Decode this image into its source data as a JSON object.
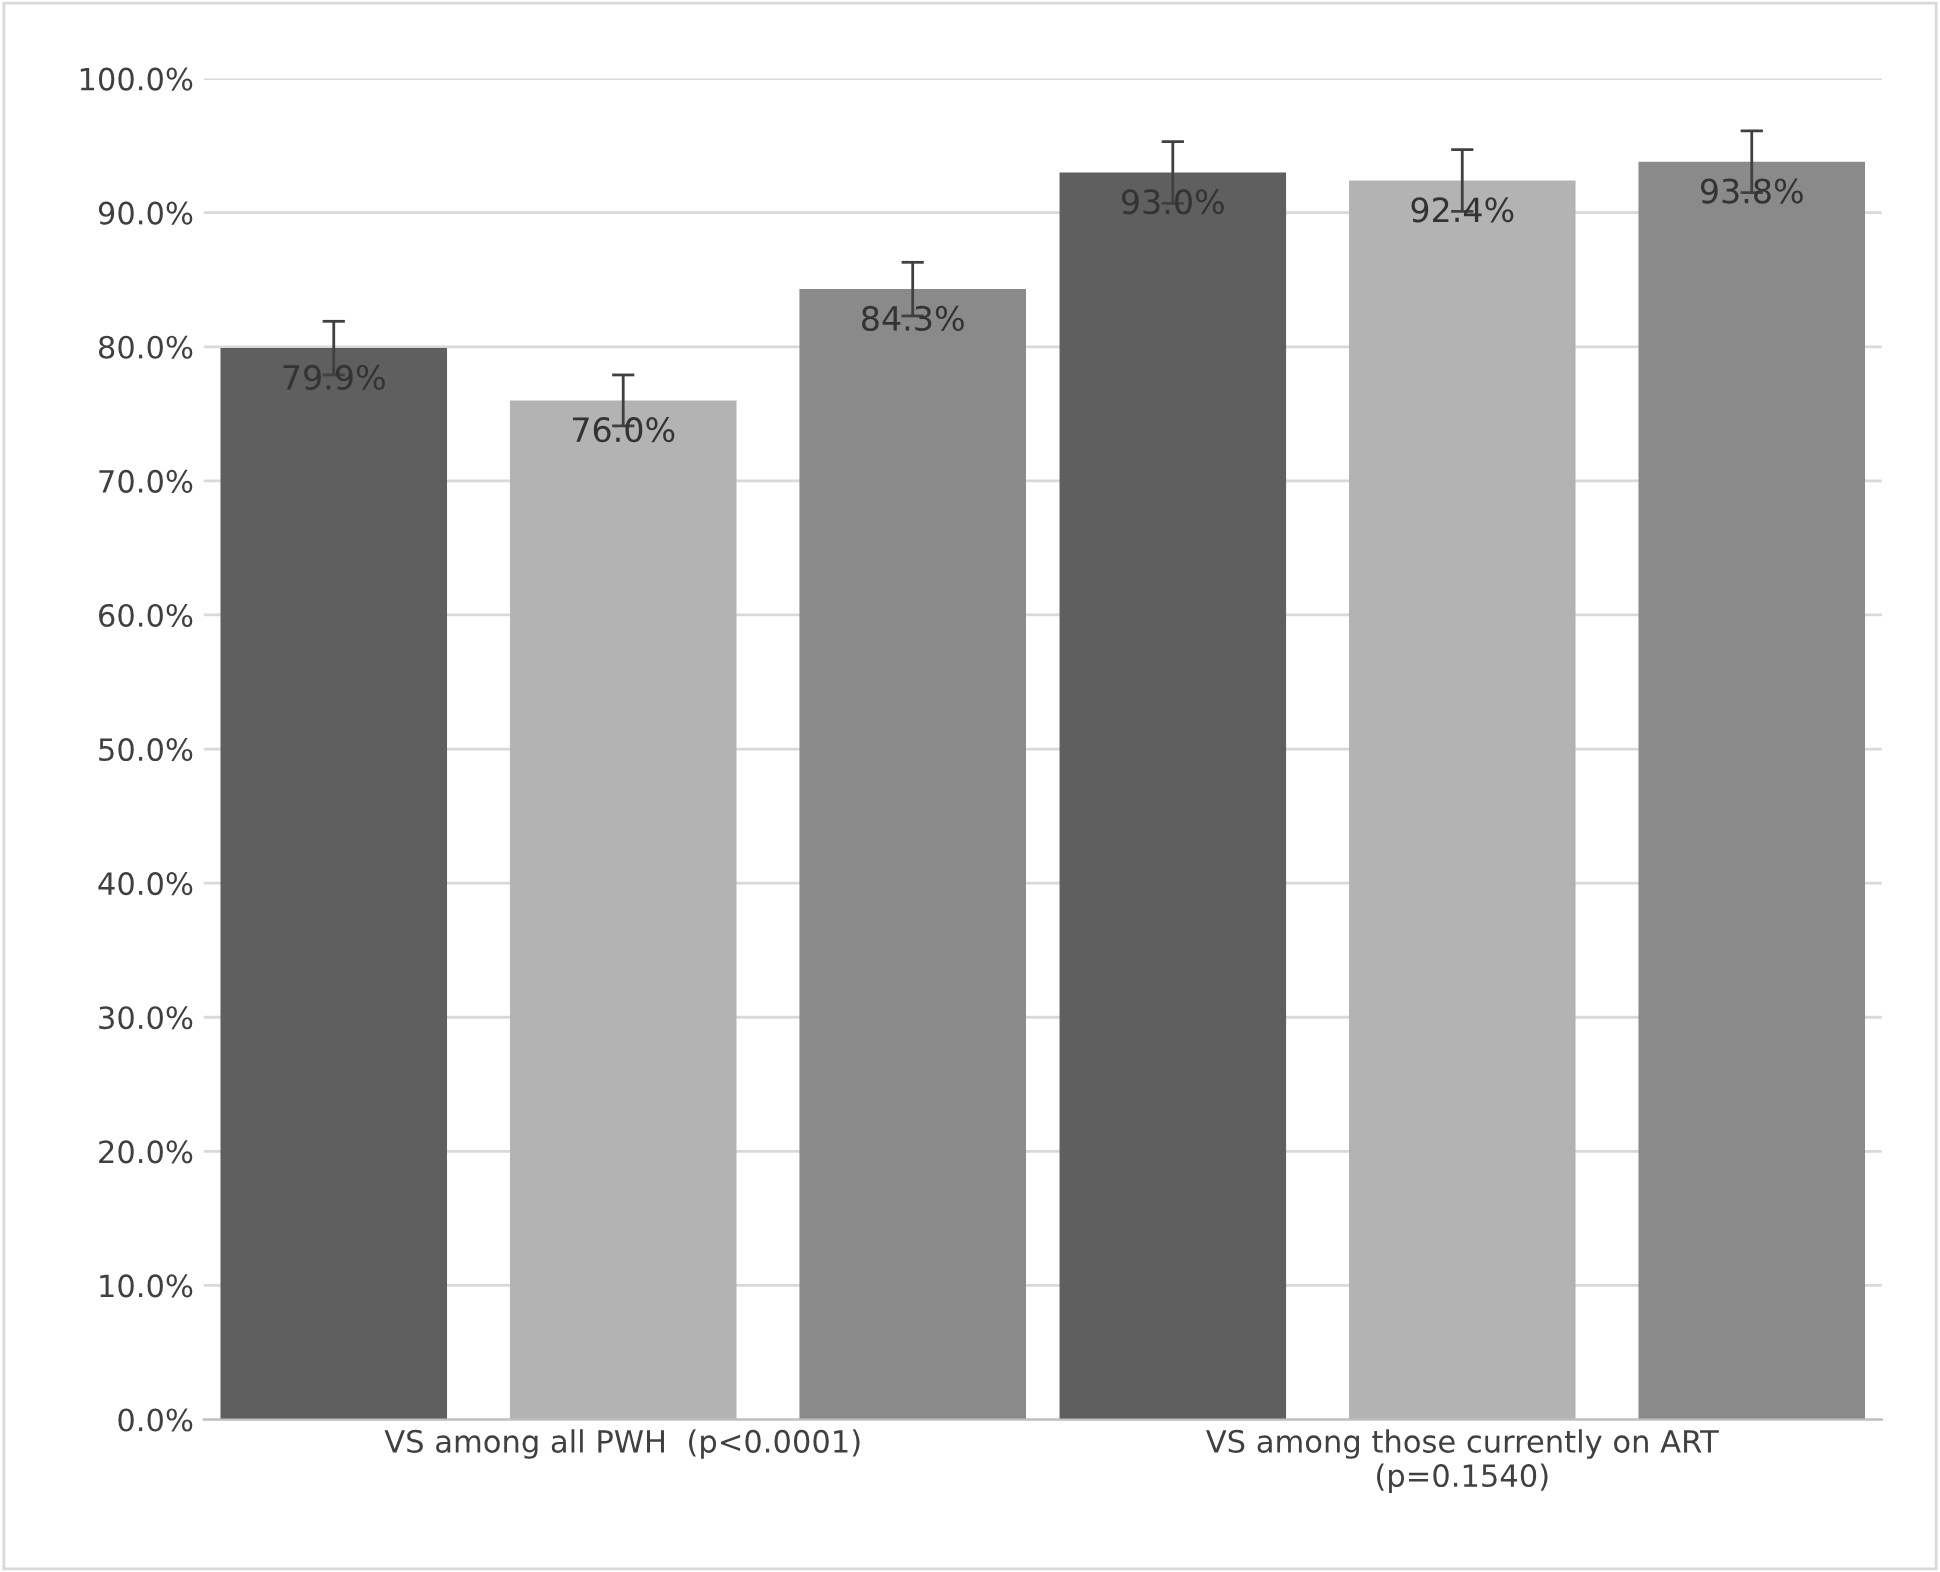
{
  "chart_data": {
    "type": "bar",
    "categories": [
      "VS among all PWH  (p<0.0001)",
      "VS among those currently on ART\n(p=0.1540)"
    ],
    "series": [
      {
        "color": "#5f5f5f",
        "values": [
          79.9,
          93.0
        ],
        "errors": [
          2.0,
          2.3
        ],
        "value_labels": [
          "79.9%",
          "93.0%"
        ]
      },
      {
        "color": "#b3b3b3",
        "values": [
          76.0,
          92.4
        ],
        "errors": [
          1.9,
          2.3
        ],
        "value_labels": [
          "76.0%",
          "92.4%"
        ]
      },
      {
        "color": "#8a8a8a",
        "values": [
          84.3,
          93.8
        ],
        "errors": [
          2.0,
          2.3
        ],
        "value_labels": [
          "84.3%",
          "93.8%"
        ]
      }
    ],
    "ylim": [
      0,
      100
    ],
    "yticks": [
      {
        "value": 0,
        "label": "0.0%"
      },
      {
        "value": 10,
        "label": "10.0%"
      },
      {
        "value": 20,
        "label": "20.0%"
      },
      {
        "value": 30,
        "label": "30.0%"
      },
      {
        "value": 40,
        "label": "40.0%"
      },
      {
        "value": 50,
        "label": "50.0%"
      },
      {
        "value": 60,
        "label": "60.0%"
      },
      {
        "value": 70,
        "label": "70.0%"
      },
      {
        "value": 80,
        "label": "80.0%"
      },
      {
        "value": 90,
        "label": "90.0%"
      },
      {
        "value": 100,
        "label": "100.0%"
      }
    ],
    "grid": "y"
  }
}
